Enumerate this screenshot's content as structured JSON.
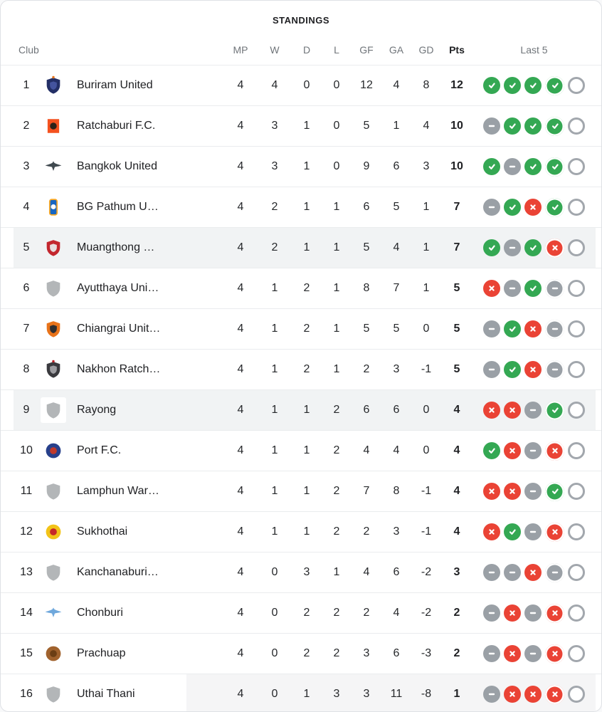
{
  "title": "STANDINGS",
  "columns": {
    "club": "Club",
    "mp": "MP",
    "w": "W",
    "d": "D",
    "l": "L",
    "gf": "GF",
    "ga": "GA",
    "gd": "GD",
    "pts": "Pts",
    "last5": "Last 5"
  },
  "colors": {
    "win": "#34a853",
    "loss": "#ea4335",
    "draw": "#9aa0a6",
    "upcoming_ring": "#a2a7ad",
    "row_highlight": "#f1f3f4",
    "partial_highlight": "#f5f5f6",
    "separator": "#eaecee",
    "header_text": "#70757a",
    "text": "#202124"
  },
  "form_legend": {
    "W": "win",
    "D": "draw",
    "L": "loss",
    "O": "upcoming",
    "ring_means": "most-recent-match"
  },
  "rows": [
    {
      "pos": "1",
      "team": "Buriram United",
      "mp": "4",
      "w": "4",
      "d": "0",
      "l": "0",
      "gf": "12",
      "ga": "4",
      "gd": "8",
      "pts": "12",
      "form": [
        "W",
        "W",
        "W",
        "W*",
        "O"
      ],
      "highlight": "none",
      "logo": {
        "shape": "shield",
        "colors": [
          "#232f66",
          "#44549e"
        ],
        "accent": "#e8731a"
      }
    },
    {
      "pos": "2",
      "team": "Ratchaburi F.C.",
      "mp": "4",
      "w": "3",
      "d": "1",
      "l": "0",
      "gf": "5",
      "ga": "1",
      "gd": "4",
      "pts": "10",
      "form": [
        "D",
        "W",
        "W",
        "W*",
        "O"
      ],
      "highlight": "none",
      "logo": {
        "shape": "square",
        "colors": [
          "#f4511e",
          "#2b2118"
        ]
      }
    },
    {
      "pos": "3",
      "team": "Bangkok United",
      "mp": "4",
      "w": "3",
      "d": "1",
      "l": "0",
      "gf": "9",
      "ga": "6",
      "gd": "3",
      "pts": "10",
      "form": [
        "W",
        "D",
        "W",
        "W*",
        "O"
      ],
      "highlight": "none",
      "logo": {
        "shape": "wing",
        "colors": [
          "#40494f"
        ]
      }
    },
    {
      "pos": "4",
      "team": "BG Pathum U…",
      "mp": "4",
      "w": "2",
      "d": "1",
      "l": "1",
      "gf": "6",
      "ga": "5",
      "gd": "1",
      "pts": "7",
      "form": [
        "D",
        "W",
        "L",
        "W*",
        "O"
      ],
      "highlight": "none",
      "logo": {
        "shape": "banner",
        "colors": [
          "#1766c2",
          "#f9a825",
          "#ffffff"
        ]
      }
    },
    {
      "pos": "5",
      "team": "Muangthong …",
      "mp": "4",
      "w": "2",
      "d": "1",
      "l": "1",
      "gf": "5",
      "ga": "4",
      "gd": "1",
      "pts": "7",
      "form": [
        "W",
        "D",
        "W",
        "L*",
        "O"
      ],
      "highlight": "full",
      "logo": {
        "shape": "shield",
        "colors": [
          "#c3272e",
          "#e7dedf"
        ]
      }
    },
    {
      "pos": "6",
      "team": "Ayutthaya Uni…",
      "mp": "4",
      "w": "1",
      "d": "2",
      "l": "1",
      "gf": "8",
      "ga": "7",
      "gd": "1",
      "pts": "5",
      "form": [
        "L",
        "D",
        "W",
        "D*",
        "O"
      ],
      "highlight": "none",
      "logo": {
        "shape": "shield",
        "colors": [
          "#b3b6b8"
        ]
      }
    },
    {
      "pos": "7",
      "team": "Chiangrai Unit…",
      "mp": "4",
      "w": "1",
      "d": "2",
      "l": "1",
      "gf": "5",
      "ga": "5",
      "gd": "0",
      "pts": "5",
      "form": [
        "D",
        "W",
        "L",
        "D*",
        "O"
      ],
      "highlight": "none",
      "logo": {
        "shape": "shield",
        "colors": [
          "#e8731a",
          "#2e2e30"
        ]
      }
    },
    {
      "pos": "8",
      "team": "Nakhon Ratch…",
      "mp": "4",
      "w": "1",
      "d": "2",
      "l": "1",
      "gf": "2",
      "ga": "3",
      "gd": "-1",
      "pts": "5",
      "form": [
        "D",
        "W",
        "L",
        "D*",
        "O"
      ],
      "highlight": "none",
      "logo": {
        "shape": "shield",
        "colors": [
          "#3a3a3e",
          "#9e9ea2"
        ],
        "accent": "#b92025"
      }
    },
    {
      "pos": "9",
      "team": "Rayong",
      "mp": "4",
      "w": "1",
      "d": "1",
      "l": "2",
      "gf": "6",
      "ga": "6",
      "gd": "0",
      "pts": "4",
      "form": [
        "L",
        "L",
        "D",
        "W*",
        "O"
      ],
      "highlight": "full",
      "logo": {
        "shape": "shield",
        "colors": [
          "#b3b6b8"
        ],
        "white_bg": true
      }
    },
    {
      "pos": "10",
      "team": "Port F.C.",
      "mp": "4",
      "w": "1",
      "d": "1",
      "l": "2",
      "gf": "4",
      "ga": "4",
      "gd": "0",
      "pts": "4",
      "form": [
        "W",
        "L",
        "D",
        "L*",
        "O"
      ],
      "highlight": "none",
      "logo": {
        "shape": "round",
        "colors": [
          "#27408b",
          "#c0392b"
        ]
      }
    },
    {
      "pos": "11",
      "team": "Lamphun War…",
      "mp": "4",
      "w": "1",
      "d": "1",
      "l": "2",
      "gf": "7",
      "ga": "8",
      "gd": "-1",
      "pts": "4",
      "form": [
        "L",
        "L",
        "D",
        "W*",
        "O"
      ],
      "highlight": "none",
      "logo": {
        "shape": "shield",
        "colors": [
          "#b3b6b8"
        ]
      }
    },
    {
      "pos": "12",
      "team": "Sukhothai",
      "mp": "4",
      "w": "1",
      "d": "1",
      "l": "2",
      "gf": "2",
      "ga": "3",
      "gd": "-1",
      "pts": "4",
      "form": [
        "L",
        "W",
        "D",
        "L*",
        "O"
      ],
      "highlight": "none",
      "logo": {
        "shape": "round",
        "colors": [
          "#f2c318",
          "#c62828"
        ]
      }
    },
    {
      "pos": "13",
      "team": "Kanchanaburi…",
      "mp": "4",
      "w": "0",
      "d": "3",
      "l": "1",
      "gf": "4",
      "ga": "6",
      "gd": "-2",
      "pts": "3",
      "form": [
        "D",
        "D",
        "L",
        "D*",
        "O"
      ],
      "highlight": "none",
      "logo": {
        "shape": "shield",
        "colors": [
          "#b3b6b8"
        ]
      }
    },
    {
      "pos": "14",
      "team": "Chonburi",
      "mp": "4",
      "w": "0",
      "d": "2",
      "l": "2",
      "gf": "2",
      "ga": "4",
      "gd": "-2",
      "pts": "2",
      "form": [
        "D",
        "L",
        "D",
        "L*",
        "O"
      ],
      "highlight": "none",
      "logo": {
        "shape": "wing",
        "colors": [
          "#6fa8dc"
        ]
      }
    },
    {
      "pos": "15",
      "team": "Prachuap",
      "mp": "4",
      "w": "0",
      "d": "2",
      "l": "2",
      "gf": "3",
      "ga": "6",
      "gd": "-3",
      "pts": "2",
      "form": [
        "D",
        "L",
        "D",
        "L*",
        "O"
      ],
      "highlight": "none",
      "logo": {
        "shape": "round",
        "colors": [
          "#a0622d",
          "#6b3e14"
        ]
      }
    },
    {
      "pos": "16",
      "team": "Uthai Thani",
      "mp": "4",
      "w": "0",
      "d": "1",
      "l": "3",
      "gf": "3",
      "ga": "11",
      "gd": "-8",
      "pts": "1",
      "form": [
        "D",
        "L",
        "L",
        "L*",
        "O"
      ],
      "highlight": "stats",
      "logo": {
        "shape": "shield",
        "colors": [
          "#b3b6b8"
        ]
      }
    }
  ]
}
